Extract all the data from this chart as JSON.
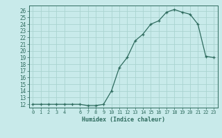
{
  "x_vals": [
    0,
    1,
    2,
    3,
    4,
    5,
    6,
    7,
    8,
    9,
    10,
    11,
    12,
    13,
    14,
    15,
    16,
    17,
    18,
    19,
    20,
    21,
    22,
    23
  ],
  "y_vals": [
    12,
    12,
    12,
    12,
    12,
    12,
    12,
    11.8,
    11.8,
    12,
    14,
    17.5,
    19,
    21.5,
    22.5,
    24,
    24.5,
    25.8,
    26.2,
    25.8,
    25.5,
    24,
    19.2,
    19
  ],
  "xlabel": "Humidex (Indice chaleur)",
  "xlim": [
    -0.5,
    23.5
  ],
  "ylim": [
    11.5,
    26.8
  ],
  "ytick_vals": [
    12,
    13,
    14,
    15,
    16,
    17,
    18,
    19,
    20,
    21,
    22,
    23,
    24,
    25,
    26
  ],
  "xtick_vals": [
    0,
    1,
    2,
    3,
    4,
    6,
    7,
    8,
    9,
    10,
    11,
    12,
    13,
    14,
    15,
    16,
    17,
    18,
    19,
    20,
    21,
    22,
    23
  ],
  "line_color": "#2e6b5e",
  "bg_color": "#c8eaea",
  "grid_color": "#aad4d0",
  "ylabel_fontsize": 5.5,
  "xlabel_fontsize": 6.0,
  "tick_fontsize": 5.0
}
